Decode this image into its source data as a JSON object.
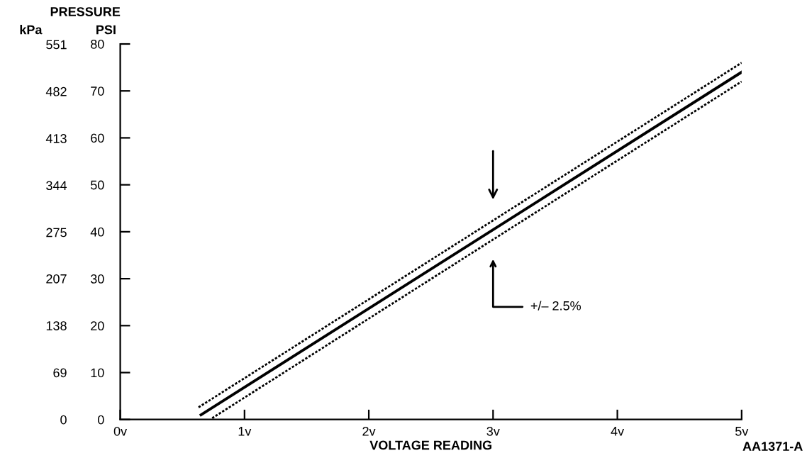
{
  "chart_data": {
    "type": "line",
    "title": "PRESSURE",
    "xlabel": "VOLTAGE READING",
    "ylabel": "PSI",
    "y2label": "kPa",
    "series": [
      {
        "color": "#000000",
        "line_style": "solid",
        "x": [
          0.65,
          5.0
        ],
        "values": [
          1,
          74
        ]
      },
      {
        "color": "#000000",
        "line_style": "dotted",
        "x": [
          0.63,
          5.0
        ],
        "values": [
          2.6,
          76
        ]
      },
      {
        "color": "#000000",
        "line_style": "dotted",
        "x": [
          0.74,
          5.0
        ],
        "values": [
          0.3,
          72
        ]
      }
    ],
    "xlim": [
      0,
      5
    ],
    "xticks": [
      {
        "value": 0,
        "label": "0v"
      },
      {
        "value": 1,
        "label": "1v"
      },
      {
        "value": 2,
        "label": "2v"
      },
      {
        "value": 3,
        "label": "3v"
      },
      {
        "value": 4,
        "label": "4v"
      },
      {
        "value": 5,
        "label": "5v"
      }
    ],
    "ylim": [
      0,
      80
    ],
    "yticks": [
      0,
      10,
      20,
      30,
      40,
      50,
      60,
      70,
      80
    ],
    "y2lim": [
      0,
      551.6
    ],
    "y2ticks": [
      0,
      69,
      138,
      207,
      275,
      344,
      413,
      482,
      551
    ],
    "annotations": [
      "+/– 2.5%",
      "AA1371-A"
    ],
    "grid": false,
    "legend": false,
    "marker": "none"
  }
}
